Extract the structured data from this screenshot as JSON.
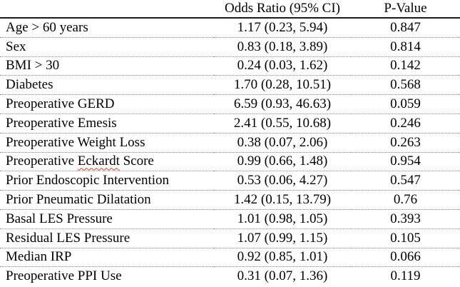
{
  "table": {
    "columns": [
      "",
      "Odds Ratio (95% CI)",
      "P-Value"
    ],
    "rows": [
      {
        "label_parts": [
          {
            "text": "Age > 60 years"
          }
        ],
        "odds_ratio_ci": "1.17 (0.23, 5.94)",
        "p_value": "0.847"
      },
      {
        "label_parts": [
          {
            "text": "Sex"
          }
        ],
        "odds_ratio_ci": "0.83 (0.18, 3.89)",
        "p_value": "0.814"
      },
      {
        "label_parts": [
          {
            "text": "BMI > 30"
          }
        ],
        "odds_ratio_ci": "0.24 (0.03, 1.62)",
        "p_value": "0.142"
      },
      {
        "label_parts": [
          {
            "text": "Diabetes"
          }
        ],
        "odds_ratio_ci": "1.70 (0.28, 10.51)",
        "p_value": "0.568"
      },
      {
        "label_parts": [
          {
            "text": "Preoperative GERD"
          }
        ],
        "odds_ratio_ci": "6.59 (0.93, 46.63)",
        "p_value": "0.059"
      },
      {
        "label_parts": [
          {
            "text": "Preoperative Emesis"
          }
        ],
        "odds_ratio_ci": "2.41 (0.55, 10.68)",
        "p_value": "0.246"
      },
      {
        "label_parts": [
          {
            "text": "Preoperative Weight Loss"
          }
        ],
        "odds_ratio_ci": "0.38 (0.07, 2.06)",
        "p_value": "0.263"
      },
      {
        "label_parts": [
          {
            "text": "Preoperative "
          },
          {
            "text": "Eckardt",
            "spellcheck_underline": true
          },
          {
            "text": " Score"
          }
        ],
        "odds_ratio_ci": "0.99 (0.66, 1.48)",
        "p_value": "0.954"
      },
      {
        "label_parts": [
          {
            "text": "Prior Endoscopic Intervention"
          }
        ],
        "odds_ratio_ci": "0.53 (0.06, 4.27)",
        "p_value": "0.547"
      },
      {
        "label_parts": [
          {
            "text": "Prior Pneumatic Dilatation"
          }
        ],
        "odds_ratio_ci": "1.42 (0.15, 13.79)",
        "p_value": "0.76"
      },
      {
        "label_parts": [
          {
            "text": "Basal LES Pressure"
          }
        ],
        "odds_ratio_ci": "1.01 (0.98, 1.05)",
        "p_value": "0.393"
      },
      {
        "label_parts": [
          {
            "text": "Residual LES Pressure"
          }
        ],
        "odds_ratio_ci": "1.07 (0.99, 1.15)",
        "p_value": "0.105"
      },
      {
        "label_parts": [
          {
            "text": "Median IRP"
          }
        ],
        "odds_ratio_ci": "0.92 (0.85, 1.01)",
        "p_value": "0.066"
      },
      {
        "label_parts": [
          {
            "text": "Preoperative PPI Use"
          }
        ],
        "odds_ratio_ci": "0.31 (0.07, 1.36)",
        "p_value": "0.119"
      }
    ],
    "colors": {
      "text": "#000000",
      "header_rule": "#1a1a1a",
      "row_rule": "#8a8a8a",
      "spellcheck": "#e0321e"
    }
  }
}
